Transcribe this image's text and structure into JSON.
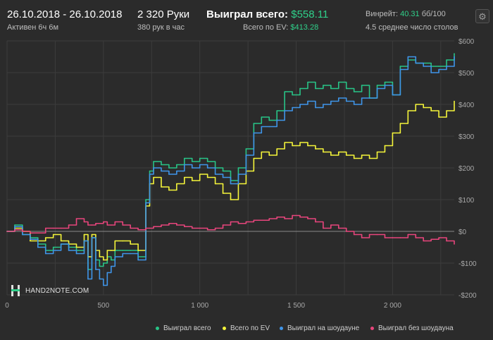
{
  "header": {
    "date_range": "26.10.2018 - 26.10.2018",
    "active_time": "Активен 6ч 6м",
    "hands": "2 320 Руки",
    "hands_per_hour": "380 рук в час",
    "won_total_label": "Выиграл всего:",
    "won_total_value": "$558.11",
    "ev_total_label": "Всего по EV:",
    "ev_total_value": "$413.28",
    "winrate_label": "Винрейт:",
    "winrate_value": "40.31",
    "winrate_unit": "бб/100",
    "avg_tables": "4.5 среднее число столов"
  },
  "logo": {
    "text": "HAND2NOTE.COM",
    "accent": "2"
  },
  "colors": {
    "background": "#2b2b2b",
    "grid": "#3c3c3c",
    "zero_line": "#8a8a8a",
    "green": "#28c487",
    "yellow": "#f5f53a",
    "blue": "#3f95e9",
    "pink": "#e8457c",
    "accent_text": "#2fd08a"
  },
  "legend": [
    {
      "label": "Выиграл всего",
      "color": "#28c487"
    },
    {
      "label": "Всего по EV",
      "color": "#f5f53a"
    },
    {
      "label": "Выиграл на шоудауне",
      "color": "#3f95e9"
    },
    {
      "label": "Выиграл без шоудауна",
      "color": "#e8457c"
    }
  ],
  "chart_data": {
    "type": "line",
    "title": "",
    "xlabel": "",
    "ylabel": "",
    "xlim": [
      0,
      2320
    ],
    "ylim": [
      -200,
      600
    ],
    "x_ticks": [
      0,
      500,
      1000,
      1500,
      2000
    ],
    "x_tick_labels": [
      "0",
      "500",
      "1 000",
      "1 500",
      "2 000"
    ],
    "y_ticks": [
      -200,
      -100,
      0,
      100,
      200,
      300,
      400,
      500,
      600
    ],
    "y_tick_labels": [
      "-$200",
      "-$100",
      "$0",
      "$100",
      "$200",
      "$300",
      "$400",
      "$500",
      "$600"
    ],
    "grid": true,
    "legend_position": "bottom-right",
    "x": [
      0,
      40,
      80,
      120,
      160,
      200,
      240,
      280,
      320,
      360,
      400,
      420,
      440,
      460,
      480,
      500,
      520,
      540,
      560,
      600,
      640,
      680,
      720,
      740,
      760,
      800,
      840,
      880,
      920,
      960,
      1000,
      1040,
      1080,
      1120,
      1160,
      1200,
      1240,
      1280,
      1320,
      1360,
      1400,
      1440,
      1480,
      1520,
      1560,
      1600,
      1640,
      1680,
      1720,
      1760,
      1800,
      1840,
      1880,
      1920,
      1960,
      2000,
      2040,
      2080,
      2120,
      2160,
      2200,
      2240,
      2280,
      2320
    ],
    "series": [
      {
        "name": "Выиграл всего",
        "values": [
          0,
          20,
          -10,
          -20,
          -40,
          -60,
          -50,
          -40,
          -50,
          -60,
          -30,
          -120,
          -20,
          -90,
          -110,
          -100,
          -80,
          -90,
          -60,
          -60,
          -60,
          -80,
          100,
          190,
          220,
          210,
          200,
          210,
          230,
          220,
          230,
          220,
          200,
          190,
          160,
          200,
          260,
          340,
          360,
          350,
          380,
          440,
          430,
          450,
          470,
          450,
          460,
          450,
          470,
          450,
          440,
          460,
          420,
          460,
          470,
          430,
          520,
          540,
          530,
          530,
          520,
          520,
          540,
          560
        ]
      },
      {
        "name": "Всего по EV",
        "values": [
          0,
          10,
          0,
          -30,
          -30,
          -20,
          -10,
          -30,
          -40,
          -50,
          -10,
          -80,
          -10,
          -60,
          -80,
          -90,
          -60,
          -60,
          -30,
          -30,
          -40,
          -60,
          80,
          150,
          170,
          140,
          130,
          150,
          170,
          160,
          180,
          170,
          150,
          120,
          100,
          150,
          190,
          230,
          250,
          240,
          260,
          280,
          270,
          280,
          270,
          260,
          250,
          240,
          250,
          240,
          230,
          240,
          230,
          250,
          270,
          310,
          340,
          380,
          400,
          390,
          380,
          360,
          380,
          410
        ]
      },
      {
        "name": "Выиграл на шоудауне",
        "values": [
          0,
          15,
          -10,
          -25,
          -50,
          -70,
          -60,
          -40,
          -60,
          -70,
          -30,
          -150,
          -20,
          -120,
          -150,
          -170,
          -130,
          -110,
          -80,
          -70,
          -70,
          -90,
          90,
          180,
          200,
          190,
          180,
          190,
          210,
          200,
          210,
          200,
          180,
          170,
          150,
          180,
          240,
          310,
          330,
          330,
          350,
          380,
          390,
          400,
          410,
          390,
          400,
          410,
          420,
          410,
          400,
          420,
          420,
          450,
          460,
          430,
          510,
          550,
          530,
          520,
          500,
          510,
          520,
          550
        ]
      },
      {
        "name": "Выиграл без шоудауна",
        "values": [
          0,
          5,
          0,
          -5,
          -5,
          10,
          10,
          10,
          20,
          40,
          30,
          20,
          20,
          25,
          25,
          30,
          20,
          20,
          30,
          20,
          10,
          5,
          10,
          10,
          15,
          20,
          25,
          20,
          15,
          10,
          10,
          5,
          10,
          20,
          30,
          25,
          30,
          35,
          35,
          40,
          45,
          40,
          50,
          45,
          40,
          30,
          10,
          20,
          10,
          0,
          -10,
          -20,
          -10,
          -10,
          -20,
          -20,
          -20,
          -10,
          -20,
          -30,
          -25,
          -20,
          -30,
          -40
        ]
      }
    ]
  }
}
